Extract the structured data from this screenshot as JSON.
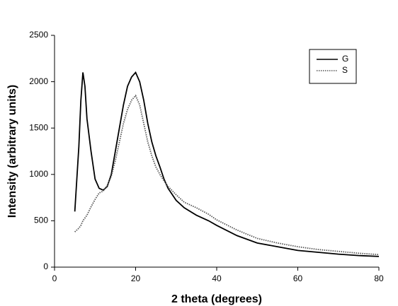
{
  "chart_data": {
    "type": "line",
    "x_label": "2 theta (degrees)",
    "y_label": "Intensity (arbitrary units)",
    "x": [
      5,
      6,
      6.5,
      7,
      7.5,
      8,
      9,
      10,
      11,
      12,
      13,
      14,
      15,
      16,
      17,
      18,
      19,
      20,
      21,
      22,
      23,
      24,
      25,
      26,
      27,
      28,
      30,
      32,
      35,
      38,
      40,
      45,
      50,
      55,
      60,
      65,
      70,
      75,
      80
    ],
    "series": [
      {
        "name": "G",
        "color": "#000000",
        "dash": "solid",
        "values": [
          600,
          1300,
          1800,
          2100,
          1950,
          1600,
          1250,
          950,
          850,
          830,
          870,
          1000,
          1250,
          1500,
          1750,
          1950,
          2050,
          2100,
          2000,
          1800,
          1550,
          1350,
          1200,
          1080,
          950,
          850,
          720,
          640,
          560,
          500,
          450,
          340,
          260,
          220,
          180,
          160,
          140,
          125,
          115
        ]
      },
      {
        "name": "S",
        "color": "#555555",
        "dash": "dotted",
        "values": [
          380,
          420,
          450,
          500,
          530,
          560,
          650,
          730,
          800,
          820,
          880,
          980,
          1150,
          1350,
          1550,
          1700,
          1800,
          1850,
          1750,
          1550,
          1350,
          1200,
          1080,
          1000,
          930,
          870,
          780,
          700,
          640,
          570,
          510,
          400,
          310,
          260,
          220,
          190,
          170,
          150,
          135
        ]
      }
    ],
    "xlim": [
      0,
      80
    ],
    "xticks": [
      0,
      20,
      40,
      60,
      80
    ],
    "ylim": [
      0,
      2500
    ],
    "yticks": [
      0,
      500,
      1000,
      1500,
      2000,
      2500
    ],
    "legend": "top-right"
  }
}
